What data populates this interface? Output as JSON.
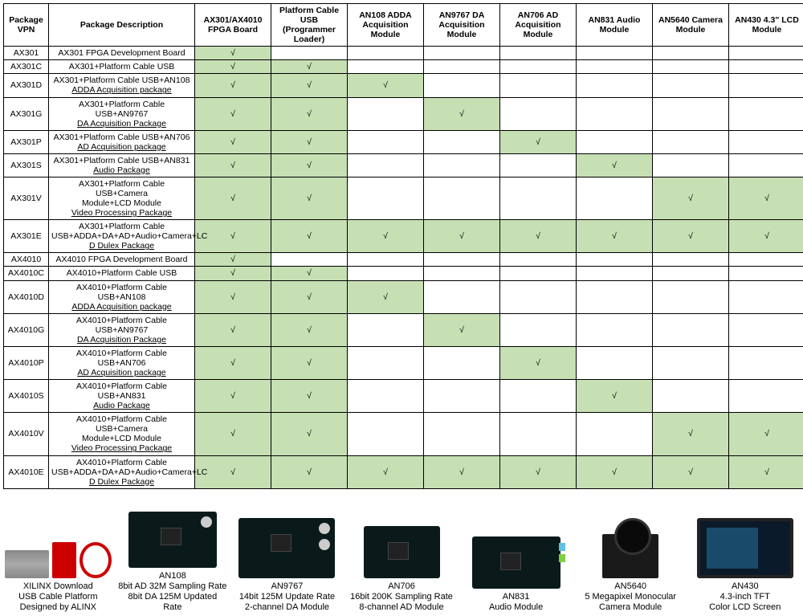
{
  "table": {
    "check_mark": "√",
    "check_bg": "#c6e0b4",
    "border_color": "#000000",
    "columns": [
      "Package VPN",
      "Package Description",
      "AX301/AX4010 FPGA Board",
      "Platform Cable USB (Programmer Loader)",
      "AN108 ADDA Acquisition Module",
      "AN9767 DA Acquisition Module",
      "AN706 AD Acquisition Module",
      "AN831 Audio Module",
      "AN5640 Camera Module",
      "AN430 4.3\" LCD Module"
    ],
    "rows": [
      {
        "vpn": "AX301",
        "desc": "AX301 FPGA Development Board",
        "cells": [
          1,
          0,
          0,
          0,
          0,
          0,
          0,
          0
        ]
      },
      {
        "vpn": "AX301C",
        "desc": "AX301+Platform Cable USB",
        "cells": [
          1,
          1,
          0,
          0,
          0,
          0,
          0,
          0
        ]
      },
      {
        "vpn": "AX301D",
        "desc": "AX301+Platform Cable USB+AN108\nADDA Acquisition package",
        "cells": [
          1,
          1,
          1,
          0,
          0,
          0,
          0,
          0
        ],
        "underline": "ADDA Acquisition package"
      },
      {
        "vpn": "AX301G",
        "desc": "AX301+Platform Cable USB+AN9767\nDA Acquisition Package",
        "cells": [
          1,
          1,
          0,
          1,
          0,
          0,
          0,
          0
        ],
        "underline": "DA Acquisition Package"
      },
      {
        "vpn": "AX301P",
        "desc": "AX301+Platform Cable USB+AN706\nAD Acquisition package",
        "cells": [
          1,
          1,
          0,
          0,
          1,
          0,
          0,
          0
        ],
        "underline": "AD Acquisition package"
      },
      {
        "vpn": "AX301S",
        "desc": "AX301+Platform Cable USB+AN831\nAudio Package",
        "cells": [
          1,
          1,
          0,
          0,
          0,
          1,
          0,
          0
        ],
        "underline": "Audio Package"
      },
      {
        "vpn": "AX301V",
        "desc": "AX301+Platform Cable USB+Camera\nModule+LCD Module\nVideo Processing Package",
        "cells": [
          1,
          1,
          0,
          0,
          0,
          0,
          1,
          1
        ],
        "underline": "Video Processing Package"
      },
      {
        "vpn": "AX301E",
        "desc": "AX301+Platform Cable\nUSB+ADDA+DA+AD+Audio+Camera+LC\nD Dulex Package",
        "cells": [
          1,
          1,
          1,
          1,
          1,
          1,
          1,
          1
        ],
        "underline": "D Dulex Package"
      },
      {
        "vpn": "AX4010",
        "desc": "AX4010 FPGA Development Board",
        "cells": [
          1,
          0,
          0,
          0,
          0,
          0,
          0,
          0
        ]
      },
      {
        "vpn": "AX4010C",
        "desc": "AX4010+Platform Cable USB",
        "cells": [
          1,
          1,
          0,
          0,
          0,
          0,
          0,
          0
        ]
      },
      {
        "vpn": "AX4010D",
        "desc": "AX4010+Platform Cable USB+AN108\nADDA Acquisition package",
        "cells": [
          1,
          1,
          1,
          0,
          0,
          0,
          0,
          0
        ],
        "underline": "ADDA Acquisition package"
      },
      {
        "vpn": "AX4010G",
        "desc": "AX4010+Platform Cable USB+AN9767\nDA Acquisition Package",
        "cells": [
          1,
          1,
          0,
          1,
          0,
          0,
          0,
          0
        ],
        "underline": "DA Acquisition Package"
      },
      {
        "vpn": "AX4010P",
        "desc": "AX4010+Platform Cable USB+AN706\nAD Acquisition package",
        "cells": [
          1,
          1,
          0,
          0,
          1,
          0,
          0,
          0
        ],
        "underline": "AD Acquisition package"
      },
      {
        "vpn": "AX4010S",
        "desc": "AX4010+Platform Cable USB+AN831\nAudio Package",
        "cells": [
          1,
          1,
          0,
          0,
          0,
          1,
          0,
          0
        ],
        "underline": "Audio Package"
      },
      {
        "vpn": "AX4010V",
        "desc": "AX4010+Platform Cable USB+Camera\nModule+LCD Module\nVideo Processing Package",
        "cells": [
          1,
          1,
          0,
          0,
          0,
          0,
          1,
          1
        ],
        "underline": "Video Processing Package"
      },
      {
        "vpn": "AX4010E",
        "desc": "AX4010+Platform Cable\nUSB+ADDA+DA+AD+Audio+Camera+LC\nD Dulex Package",
        "cells": [
          1,
          1,
          1,
          1,
          1,
          1,
          1,
          1
        ],
        "underline": "D Dulex Package"
      }
    ]
  },
  "gallery": [
    {
      "name": "xilinx-cable",
      "title": "XILINX  Download\nUSB Cable Platform\nDesigned by ALINX",
      "img": "cable"
    },
    {
      "name": "an108",
      "title": "AN108\n8bit AD 32M Sampling Rate\n8bit DA 125M Updated Rate",
      "img": "board1"
    },
    {
      "name": "an9767",
      "title": "AN9767\n14bit 125M Update Rate\n2-channel DA Module",
      "img": "board2"
    },
    {
      "name": "an706",
      "title": "AN706\n16bit 200K Sampling Rate\n8-channel AD Module",
      "img": "board3"
    },
    {
      "name": "an831",
      "title": "AN831\nAudio Module",
      "img": "audio"
    },
    {
      "name": "an5640",
      "title": "AN5640\n5 Megapixel Monocular\nCamera Module",
      "img": "camera"
    },
    {
      "name": "an430",
      "title": "AN430\n4.3-inch TFT\nColor LCD Screen",
      "img": "screen"
    }
  ]
}
